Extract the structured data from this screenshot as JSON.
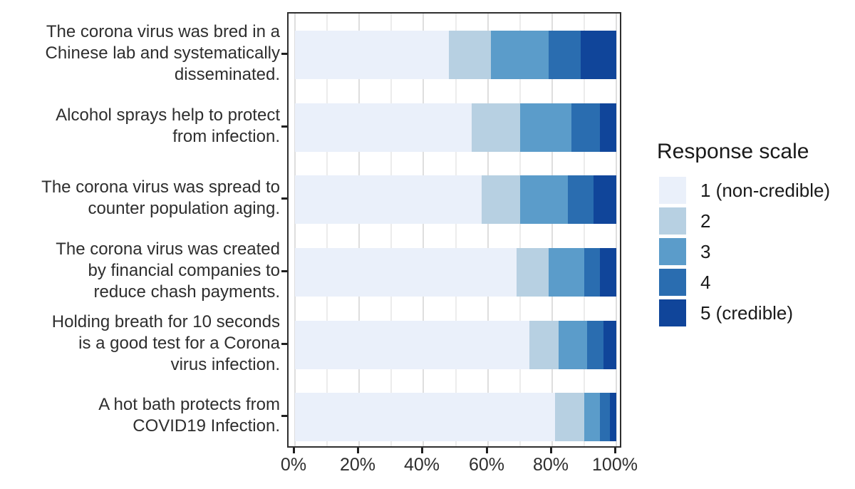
{
  "chart_data": {
    "type": "bar",
    "variant": "horizontal-stacked-100pct",
    "title": "",
    "xlabel": "",
    "ylabel": "",
    "xlim": [
      0,
      100
    ],
    "x_tick_labels": [
      "0%",
      "20%",
      "40%",
      "60%",
      "80%",
      "100%"
    ],
    "x_tick_values": [
      0,
      20,
      40,
      60,
      80,
      100
    ],
    "minor_grid_values": [
      10,
      30,
      50,
      70,
      90
    ],
    "grid": "vertical-light-gray",
    "legend_position": "right",
    "legend_title": "Response scale",
    "categories": [
      {
        "label": "The corona virus was bred in a Chinese lab and systematically disseminated.",
        "lines": [
          "The corona virus was bred in a",
          "Chinese lab and systematically",
          "disseminated."
        ]
      },
      {
        "label": "Alcohol sprays help to protect from infection.",
        "lines": [
          "Alcohol sprays help to protect",
          "from infection."
        ]
      },
      {
        "label": "The corona virus was spread to counter population aging.",
        "lines": [
          "The corona virus was spread to",
          "counter population aging."
        ]
      },
      {
        "label": "The corona virus was created by financial companies to reduce chash payments.",
        "lines": [
          "The corona virus was created",
          "by financial companies to",
          "reduce chash payments."
        ]
      },
      {
        "label": "Holding breath for 10 seconds is a good test for a Corona virus infection.",
        "lines": [
          "Holding breath for 10 seconds",
          "is a good test for a Corona",
          "virus infection."
        ]
      },
      {
        "label": "A hot bath protects from COVID19 Infection.",
        "lines": [
          "A hot bath protects from",
          "COVID19 Infection."
        ]
      }
    ],
    "series": [
      {
        "name": "1 (non-credible)",
        "color": "#EAF0FA",
        "values": [
          48,
          55,
          58,
          69,
          73,
          81
        ]
      },
      {
        "name": "2",
        "color": "#B7D0E2",
        "values": [
          13,
          15,
          12,
          10,
          9,
          9
        ]
      },
      {
        "name": "3",
        "color": "#5B9CCA",
        "values": [
          18,
          16,
          15,
          11,
          9,
          5
        ]
      },
      {
        "name": "4",
        "color": "#2A6DB0",
        "values": [
          10,
          9,
          8,
          5,
          5,
          3
        ]
      },
      {
        "name": "5 (credible)",
        "color": "#10459A",
        "values": [
          11,
          5,
          7,
          5,
          4,
          2
        ]
      }
    ]
  }
}
